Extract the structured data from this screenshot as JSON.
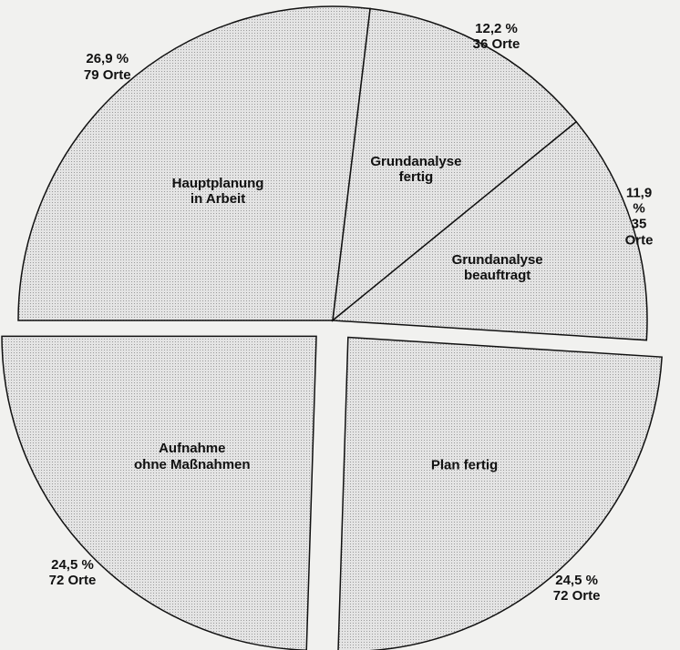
{
  "chart_data": {
    "type": "pie",
    "categories": [
      "Hauptplanung\nin Arbeit",
      "Grundanalyse\nfertig",
      "Grundanalyse\nbeauftragt",
      "Plan fertig",
      "Aufnahme\nohne Maßnahmen"
    ],
    "values": [
      26.9,
      12.2,
      11.9,
      24.5,
      24.5
    ],
    "value_labels": [
      "26,9 %",
      "12,2 %",
      "11,9 %",
      "24,5 %",
      "24,5 %"
    ],
    "count_labels": [
      "79 Orte",
      "36 Orte",
      "35 Orte",
      "72 Orte",
      "72 Orte"
    ],
    "exploded": [
      false,
      false,
      false,
      true,
      true
    ],
    "color": "#dcdcdc"
  }
}
